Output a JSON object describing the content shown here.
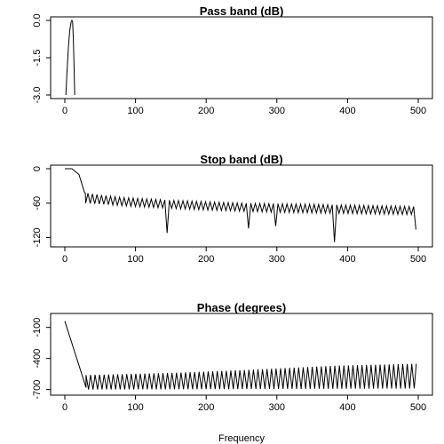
{
  "xlabel": "Frequency",
  "chart_data": [
    {
      "type": "line",
      "title": "Pass band (dB)",
      "xlabel": "Frequency",
      "ylabel": "",
      "xlim": [
        0,
        500
      ],
      "ylim": [
        -3.0,
        0.0
      ],
      "x_ticks": [
        0,
        100,
        200,
        300,
        400,
        500
      ],
      "y_ticks": [
        0.0,
        -1.5,
        -3.0
      ],
      "x_tick_labels": [
        "0",
        "100",
        "200",
        "300",
        "400",
        "500"
      ],
      "y_tick_labels": [
        "0.0",
        "-1.5",
        "-3.0"
      ],
      "grid": false,
      "series": [
        {
          "values_xy": [
            [
              1.5,
              -3.0
            ],
            [
              3,
              -2.1
            ],
            [
              5,
              -1.1
            ],
            [
              7,
              -0.4
            ],
            [
              9,
              -0.05
            ],
            [
              10,
              0.0
            ],
            [
              11,
              -0.05
            ],
            [
              12,
              -0.7
            ],
            [
              13,
              -1.8
            ],
            [
              14,
              -3.0
            ]
          ]
        }
      ]
    },
    {
      "type": "line",
      "title": "Stop band (dB)",
      "xlabel": "Frequency",
      "ylabel": "",
      "xlim": [
        0,
        500
      ],
      "ylim": [
        -130,
        0
      ],
      "x_ticks": [
        0,
        100,
        200,
        300,
        400,
        500
      ],
      "y_ticks": [
        0,
        -60,
        -120
      ],
      "x_tick_labels": [
        "0",
        "100",
        "200",
        "300",
        "400",
        "500"
      ],
      "y_tick_labels": [
        "0",
        "-60",
        "-120"
      ],
      "grid": false,
      "envelope": [
        [
          0,
          0
        ],
        [
          10,
          0
        ],
        [
          20,
          -10
        ],
        [
          28,
          -42
        ],
        [
          40,
          -44
        ],
        [
          80,
          -50
        ],
        [
          150,
          -55
        ],
        [
          250,
          -60
        ],
        [
          350,
          -62
        ],
        [
          500,
          -66
        ]
      ],
      "notch_period": 6.4,
      "notch_start": 29.5,
      "notch_end": 499,
      "notch_depth": [
        [
          30,
          -60
        ],
        [
          100,
          -66
        ],
        [
          200,
          -72
        ],
        [
          300,
          -76
        ],
        [
          400,
          -78
        ],
        [
          500,
          -80
        ]
      ],
      "deep_notches": [
        [
          147,
          -112
        ],
        [
          262,
          -104
        ],
        [
          300,
          -100
        ],
        [
          381,
          -128
        ],
        [
          497,
          -106
        ]
      ]
    },
    {
      "type": "line",
      "title": "Phase (degrees)",
      "xlabel": "Frequency",
      "ylabel": "",
      "xlim": [
        0,
        500
      ],
      "ylim": [
        -720,
        0
      ],
      "x_ticks": [
        0,
        100,
        200,
        300,
        400,
        500
      ],
      "y_ticks": [
        -100,
        -400,
        -700
      ],
      "x_tick_labels": [
        "0",
        "100",
        "200",
        "300",
        "400",
        "500"
      ],
      "y_tick_labels": [
        "-100",
        "-400",
        "-700"
      ],
      "grid": false,
      "initial_segment": [
        [
          0,
          -40
        ],
        [
          30,
          -680
        ]
      ],
      "sawtooth_period": 6.4,
      "sawtooth_start": 30,
      "sawtooth_end": 499,
      "sawtooth_top": [
        [
          30,
          -560
        ],
        [
          150,
          -540
        ],
        [
          260,
          -510
        ],
        [
          380,
          -470
        ],
        [
          500,
          -450
        ]
      ],
      "sawtooth_bottom": [
        [
          30,
          -700
        ],
        [
          500,
          -690
        ]
      ]
    }
  ]
}
